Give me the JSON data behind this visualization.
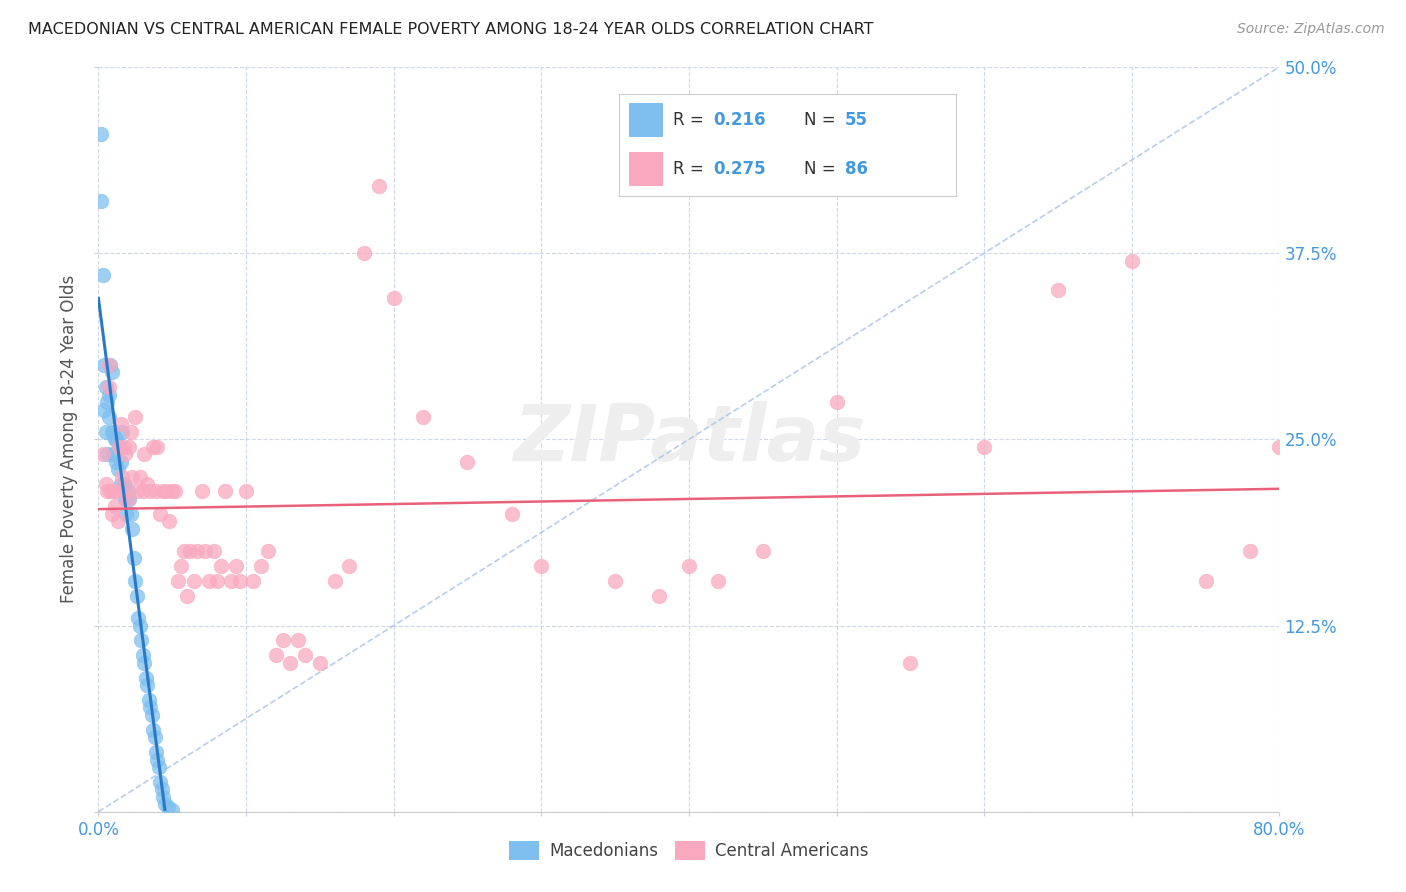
{
  "title": "MACEDONIAN VS CENTRAL AMERICAN FEMALE POVERTY AMONG 18-24 YEAR OLDS CORRELATION CHART",
  "source": "Source: ZipAtlas.com",
  "ylabel": "Female Poverty Among 18-24 Year Olds",
  "xlim": [
    0.0,
    0.8
  ],
  "ylim": [
    0.0,
    0.5
  ],
  "xticks": [
    0.0,
    0.1,
    0.2,
    0.3,
    0.4,
    0.5,
    0.6,
    0.7,
    0.8
  ],
  "yticks": [
    0.0,
    0.125,
    0.25,
    0.375,
    0.5
  ],
  "right_yticklabels": [
    "",
    "12.5%",
    "25.0%",
    "37.5%",
    "50.0%"
  ],
  "blue_scatter_color": "#7fbfef",
  "pink_scatter_color": "#f9a8c0",
  "blue_line_color": "#2979c8",
  "pink_line_color": "#e8607a",
  "ref_line_color": "#b0c8e8",
  "label_color": "#4499dd",
  "title_color": "#222222",
  "grid_color": "#d0d8e8",
  "background_color": "#ffffff",
  "legend_R_blue": "0.216",
  "legend_N_blue": "55",
  "legend_R_pink": "0.275",
  "legend_N_pink": "86",
  "legend_label_blue": "Macedonians",
  "legend_label_pink": "Central Americans",
  "macedonian_x": [
    0.002,
    0.002,
    0.003,
    0.004,
    0.004,
    0.005,
    0.005,
    0.006,
    0.006,
    0.007,
    0.007,
    0.008,
    0.009,
    0.009,
    0.01,
    0.01,
    0.011,
    0.012,
    0.012,
    0.013,
    0.014,
    0.015,
    0.015,
    0.016,
    0.017,
    0.018,
    0.019,
    0.02,
    0.021,
    0.022,
    0.023,
    0.024,
    0.025,
    0.026,
    0.027,
    0.028,
    0.029,
    0.03,
    0.031,
    0.032,
    0.033,
    0.034,
    0.035,
    0.036,
    0.037,
    0.038,
    0.039,
    0.04,
    0.041,
    0.042,
    0.043,
    0.044,
    0.045,
    0.047,
    0.05
  ],
  "macedonian_y": [
    0.455,
    0.41,
    0.36,
    0.3,
    0.27,
    0.285,
    0.255,
    0.275,
    0.24,
    0.265,
    0.28,
    0.3,
    0.255,
    0.295,
    0.255,
    0.24,
    0.25,
    0.25,
    0.235,
    0.23,
    0.245,
    0.22,
    0.235,
    0.255,
    0.22,
    0.21,
    0.2,
    0.215,
    0.21,
    0.2,
    0.19,
    0.17,
    0.155,
    0.145,
    0.13,
    0.125,
    0.115,
    0.105,
    0.1,
    0.09,
    0.085,
    0.075,
    0.07,
    0.065,
    0.055,
    0.05,
    0.04,
    0.035,
    0.03,
    0.02,
    0.015,
    0.01,
    0.005,
    0.003,
    0.001
  ],
  "central_american_x": [
    0.003,
    0.005,
    0.006,
    0.007,
    0.007,
    0.008,
    0.009,
    0.01,
    0.011,
    0.012,
    0.013,
    0.014,
    0.015,
    0.016,
    0.017,
    0.018,
    0.019,
    0.02,
    0.021,
    0.022,
    0.023,
    0.025,
    0.026,
    0.028,
    0.03,
    0.031,
    0.033,
    0.035,
    0.037,
    0.039,
    0.04,
    0.042,
    0.044,
    0.046,
    0.048,
    0.05,
    0.052,
    0.054,
    0.056,
    0.058,
    0.06,
    0.062,
    0.065,
    0.067,
    0.07,
    0.072,
    0.075,
    0.078,
    0.08,
    0.083,
    0.086,
    0.09,
    0.093,
    0.096,
    0.1,
    0.105,
    0.11,
    0.115,
    0.12,
    0.125,
    0.13,
    0.135,
    0.14,
    0.15,
    0.16,
    0.17,
    0.18,
    0.19,
    0.2,
    0.22,
    0.25,
    0.28,
    0.3,
    0.35,
    0.38,
    0.4,
    0.42,
    0.45,
    0.5,
    0.55,
    0.6,
    0.65,
    0.7,
    0.75,
    0.78,
    0.8
  ],
  "central_american_y": [
    0.24,
    0.22,
    0.215,
    0.3,
    0.285,
    0.215,
    0.2,
    0.215,
    0.205,
    0.215,
    0.195,
    0.245,
    0.26,
    0.225,
    0.245,
    0.24,
    0.215,
    0.21,
    0.245,
    0.255,
    0.225,
    0.265,
    0.215,
    0.225,
    0.215,
    0.24,
    0.22,
    0.215,
    0.245,
    0.215,
    0.245,
    0.2,
    0.215,
    0.215,
    0.195,
    0.215,
    0.215,
    0.155,
    0.165,
    0.175,
    0.145,
    0.175,
    0.155,
    0.175,
    0.215,
    0.175,
    0.155,
    0.175,
    0.155,
    0.165,
    0.215,
    0.155,
    0.165,
    0.155,
    0.215,
    0.155,
    0.165,
    0.175,
    0.105,
    0.115,
    0.1,
    0.115,
    0.105,
    0.1,
    0.155,
    0.165,
    0.375,
    0.42,
    0.345,
    0.265,
    0.235,
    0.2,
    0.165,
    0.155,
    0.145,
    0.165,
    0.155,
    0.175,
    0.275,
    0.1,
    0.245,
    0.35,
    0.37,
    0.155,
    0.175,
    0.245
  ]
}
